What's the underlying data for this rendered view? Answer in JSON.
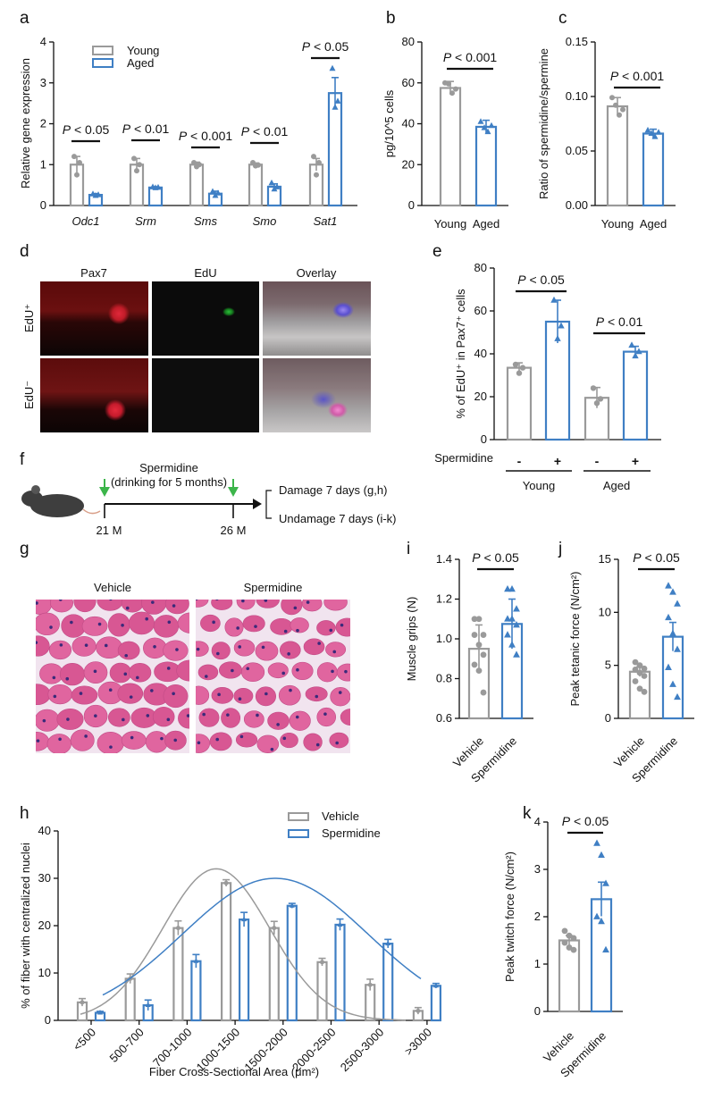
{
  "panel_labels": {
    "a": "a",
    "b": "b",
    "c": "c",
    "d": "d",
    "e": "e",
    "f": "f",
    "g": "g",
    "h": "h",
    "i": "i",
    "j": "j",
    "k": "k"
  },
  "colors": {
    "young": "#9a9a9a",
    "aged": "#3f7fc4",
    "arrow": "#3cb54a"
  },
  "chart_data": [
    {
      "id": "a",
      "type": "bar",
      "ylabel": "Relative gene expression",
      "ylim": [
        0,
        4
      ],
      "yticks": [
        "0",
        "1",
        "2",
        "3",
        "4"
      ],
      "categories": [
        "Odc1",
        "Srm",
        "Sms",
        "Smo",
        "Sat1"
      ],
      "legend": [
        "Young",
        "Aged"
      ],
      "series": [
        {
          "name": "Young",
          "values": [
            1.0,
            1.0,
            1.0,
            1.0,
            1.0
          ],
          "err": [
            0.2,
            0.15,
            0.06,
            0.04,
            0.15
          ],
          "points": [
            [
              1.2,
              0.75,
              1.05
            ],
            [
              1.15,
              0.85,
              1.0
            ],
            [
              1.05,
              0.95,
              1.0
            ],
            [
              1.05,
              0.97,
              0.99
            ],
            [
              1.2,
              0.75,
              1.05
            ]
          ]
        },
        {
          "name": "Aged",
          "values": [
            0.26,
            0.44,
            0.29,
            0.46,
            2.75
          ],
          "err": [
            0.03,
            0.02,
            0.06,
            0.07,
            0.38
          ],
          "points": [
            [
              0.28,
              0.24,
              0.26
            ],
            [
              0.45,
              0.43,
              0.44
            ],
            [
              0.34,
              0.24,
              0.3
            ],
            [
              0.55,
              0.4,
              0.45
            ],
            [
              3.35,
              2.4,
              2.55
            ]
          ]
        }
      ],
      "pvalues": [
        "P < 0.05",
        "P < 0.01",
        "P < 0.001",
        "P < 0.01",
        "P < 0.05"
      ]
    },
    {
      "id": "b",
      "type": "bar",
      "ylabel": "pg/10^5 cells",
      "ylim": [
        0,
        80
      ],
      "yticks": [
        "0",
        "20",
        "40",
        "60",
        "80"
      ],
      "categories": [
        "Young",
        "Aged"
      ],
      "values": [
        57.5,
        38.5
      ],
      "err": [
        3.2,
        3.2
      ],
      "points": [
        [
          60,
          59.5,
          55,
          57
        ],
        [
          41,
          38,
          36,
          39
        ]
      ],
      "pvalue": "P < 0.001"
    },
    {
      "id": "c",
      "type": "bar",
      "ylabel": "Ratio of spermidine/spermine",
      "ylim": [
        0,
        0.15
      ],
      "yticks": [
        "0.00",
        "0.05",
        "0.10",
        "0.15"
      ],
      "categories": [
        "Young",
        "Aged"
      ],
      "values": [
        0.091,
        0.066
      ],
      "err": [
        0.008,
        0.004
      ],
      "points": [
        [
          0.099,
          0.092,
          0.083,
          0.088
        ],
        [
          0.069,
          0.066,
          0.063,
          0.067
        ]
      ],
      "pvalue": "P < 0.001"
    },
    {
      "id": "e",
      "type": "bar",
      "ylabel": "% of EdU⁺ in Pax7⁺ cells",
      "ylim": [
        0,
        80
      ],
      "yticks": [
        "0",
        "20",
        "40",
        "60",
        "80"
      ],
      "values": [
        33.5,
        55,
        19.5,
        41
      ],
      "err": [
        2.3,
        10,
        4.8,
        2.5
      ],
      "points": [
        [
          35,
          31,
          33.5
        ],
        [
          65,
          47,
          53
        ],
        [
          24,
          17,
          19
        ],
        [
          44,
          39,
          41
        ]
      ],
      "row_label": "Spermidine",
      "signs": [
        "-",
        "+",
        "-",
        "+"
      ],
      "groups": [
        "Young",
        "Aged"
      ],
      "pvalues": [
        "P < 0.05",
        "P < 0.01"
      ]
    },
    {
      "id": "i",
      "type": "bar",
      "ylabel": "Muscle grips (N)",
      "ylim": [
        0.6,
        1.4
      ],
      "yticks": [
        "0.6",
        "0.8",
        "1.0",
        "1.2",
        "1.4"
      ],
      "categories": [
        "Vehicle",
        "Spermidine"
      ],
      "values": [
        0.95,
        1.075
      ],
      "err": [
        0.12,
        0.125
      ],
      "points": [
        [
          1.1,
          1.1,
          1.02,
          1.02,
          0.97,
          0.92,
          0.87,
          0.84,
          0.73
        ],
        [
          1.25,
          1.25,
          1.15,
          1.1,
          1.1,
          1.07,
          1.02,
          0.97,
          0.92
        ]
      ],
      "pvalue": "P < 0.05"
    },
    {
      "id": "j",
      "type": "bar",
      "ylabel": "Peak tetanic force (N/cm²)",
      "ylim": [
        0,
        15
      ],
      "yticks": [
        "0",
        "5",
        "10",
        "15"
      ],
      "categories": [
        "Vehicle",
        "Spermidine"
      ],
      "values": [
        4.4,
        7.7
      ],
      "err": [
        0.45,
        1.35
      ],
      "points": [
        [
          5.3,
          5.0,
          4.7,
          4.6,
          4.3,
          4.0,
          3.5,
          2.8,
          2.5
        ],
        [
          12.5,
          11.9,
          10.8,
          9.5,
          8.0,
          6.5,
          4.8,
          3.2,
          2.0
        ]
      ],
      "pvalue": "P < 0.05"
    },
    {
      "id": "k",
      "type": "bar",
      "ylabel": "Peak twitch force (N/cm²)",
      "ylim": [
        0,
        4
      ],
      "yticks": [
        "0",
        "1",
        "2",
        "3",
        "4"
      ],
      "categories": [
        "Vehicle",
        "Spermidine"
      ],
      "values": [
        1.5,
        2.37
      ],
      "err": [
        0.1,
        0.36
      ],
      "points": [
        [
          1.7,
          1.6,
          1.55,
          1.45,
          1.35,
          1.3
        ],
        [
          3.55,
          3.3,
          2.7,
          2.0,
          1.9,
          1.3
        ]
      ],
      "pvalue": "P < 0.05"
    },
    {
      "id": "h",
      "type": "bar",
      "ylabel": "% of fiber with centralized nuclei",
      "xlabel": "Fiber Cross-Sectional Area (μm²)",
      "ylim": [
        0,
        40
      ],
      "yticks": [
        "0",
        "10",
        "20",
        "30",
        "40"
      ],
      "categories": [
        "<500",
        "500-700",
        "700-1000",
        "1000-1500",
        "1500-2000",
        "2000-2500",
        "2500-3000",
        ">3000"
      ],
      "legend": [
        "Vehicle",
        "Spermidine"
      ],
      "series": [
        {
          "name": "Vehicle",
          "values": [
            3.8,
            8.8,
            19.5,
            29,
            19.5,
            12.3,
            7.5,
            2.0
          ],
          "err": [
            0.8,
            1.0,
            1.5,
            0.7,
            1.4,
            0.8,
            1.2,
            0.7
          ]
        },
        {
          "name": "Spermidine",
          "values": [
            1.6,
            3.2,
            12.5,
            21.3,
            24.2,
            20.2,
            16.2,
            7.3
          ],
          "err": [
            0.3,
            1.1,
            1.4,
            1.5,
            0.5,
            1.2,
            0.9,
            0.5
          ]
        }
      ],
      "fit": {
        "vehicle_peak": 32,
        "spermidine_peak": 30
      }
    }
  ],
  "panel_d": {
    "cols": [
      "Pax7",
      "EdU",
      "Overlay"
    ],
    "rows": [
      "EdU⁺",
      "EdU⁻"
    ]
  },
  "panel_f": {
    "title1": "Spermidine",
    "title2": "(drinking for 5 months)",
    "start": "21 M",
    "end": "26 M",
    "out1": "Damage 7 days (g,h)",
    "out2": "Undamage 7 days (i-k)"
  },
  "panel_g": {
    "left": "Vehicle",
    "right": "Spermidine"
  }
}
